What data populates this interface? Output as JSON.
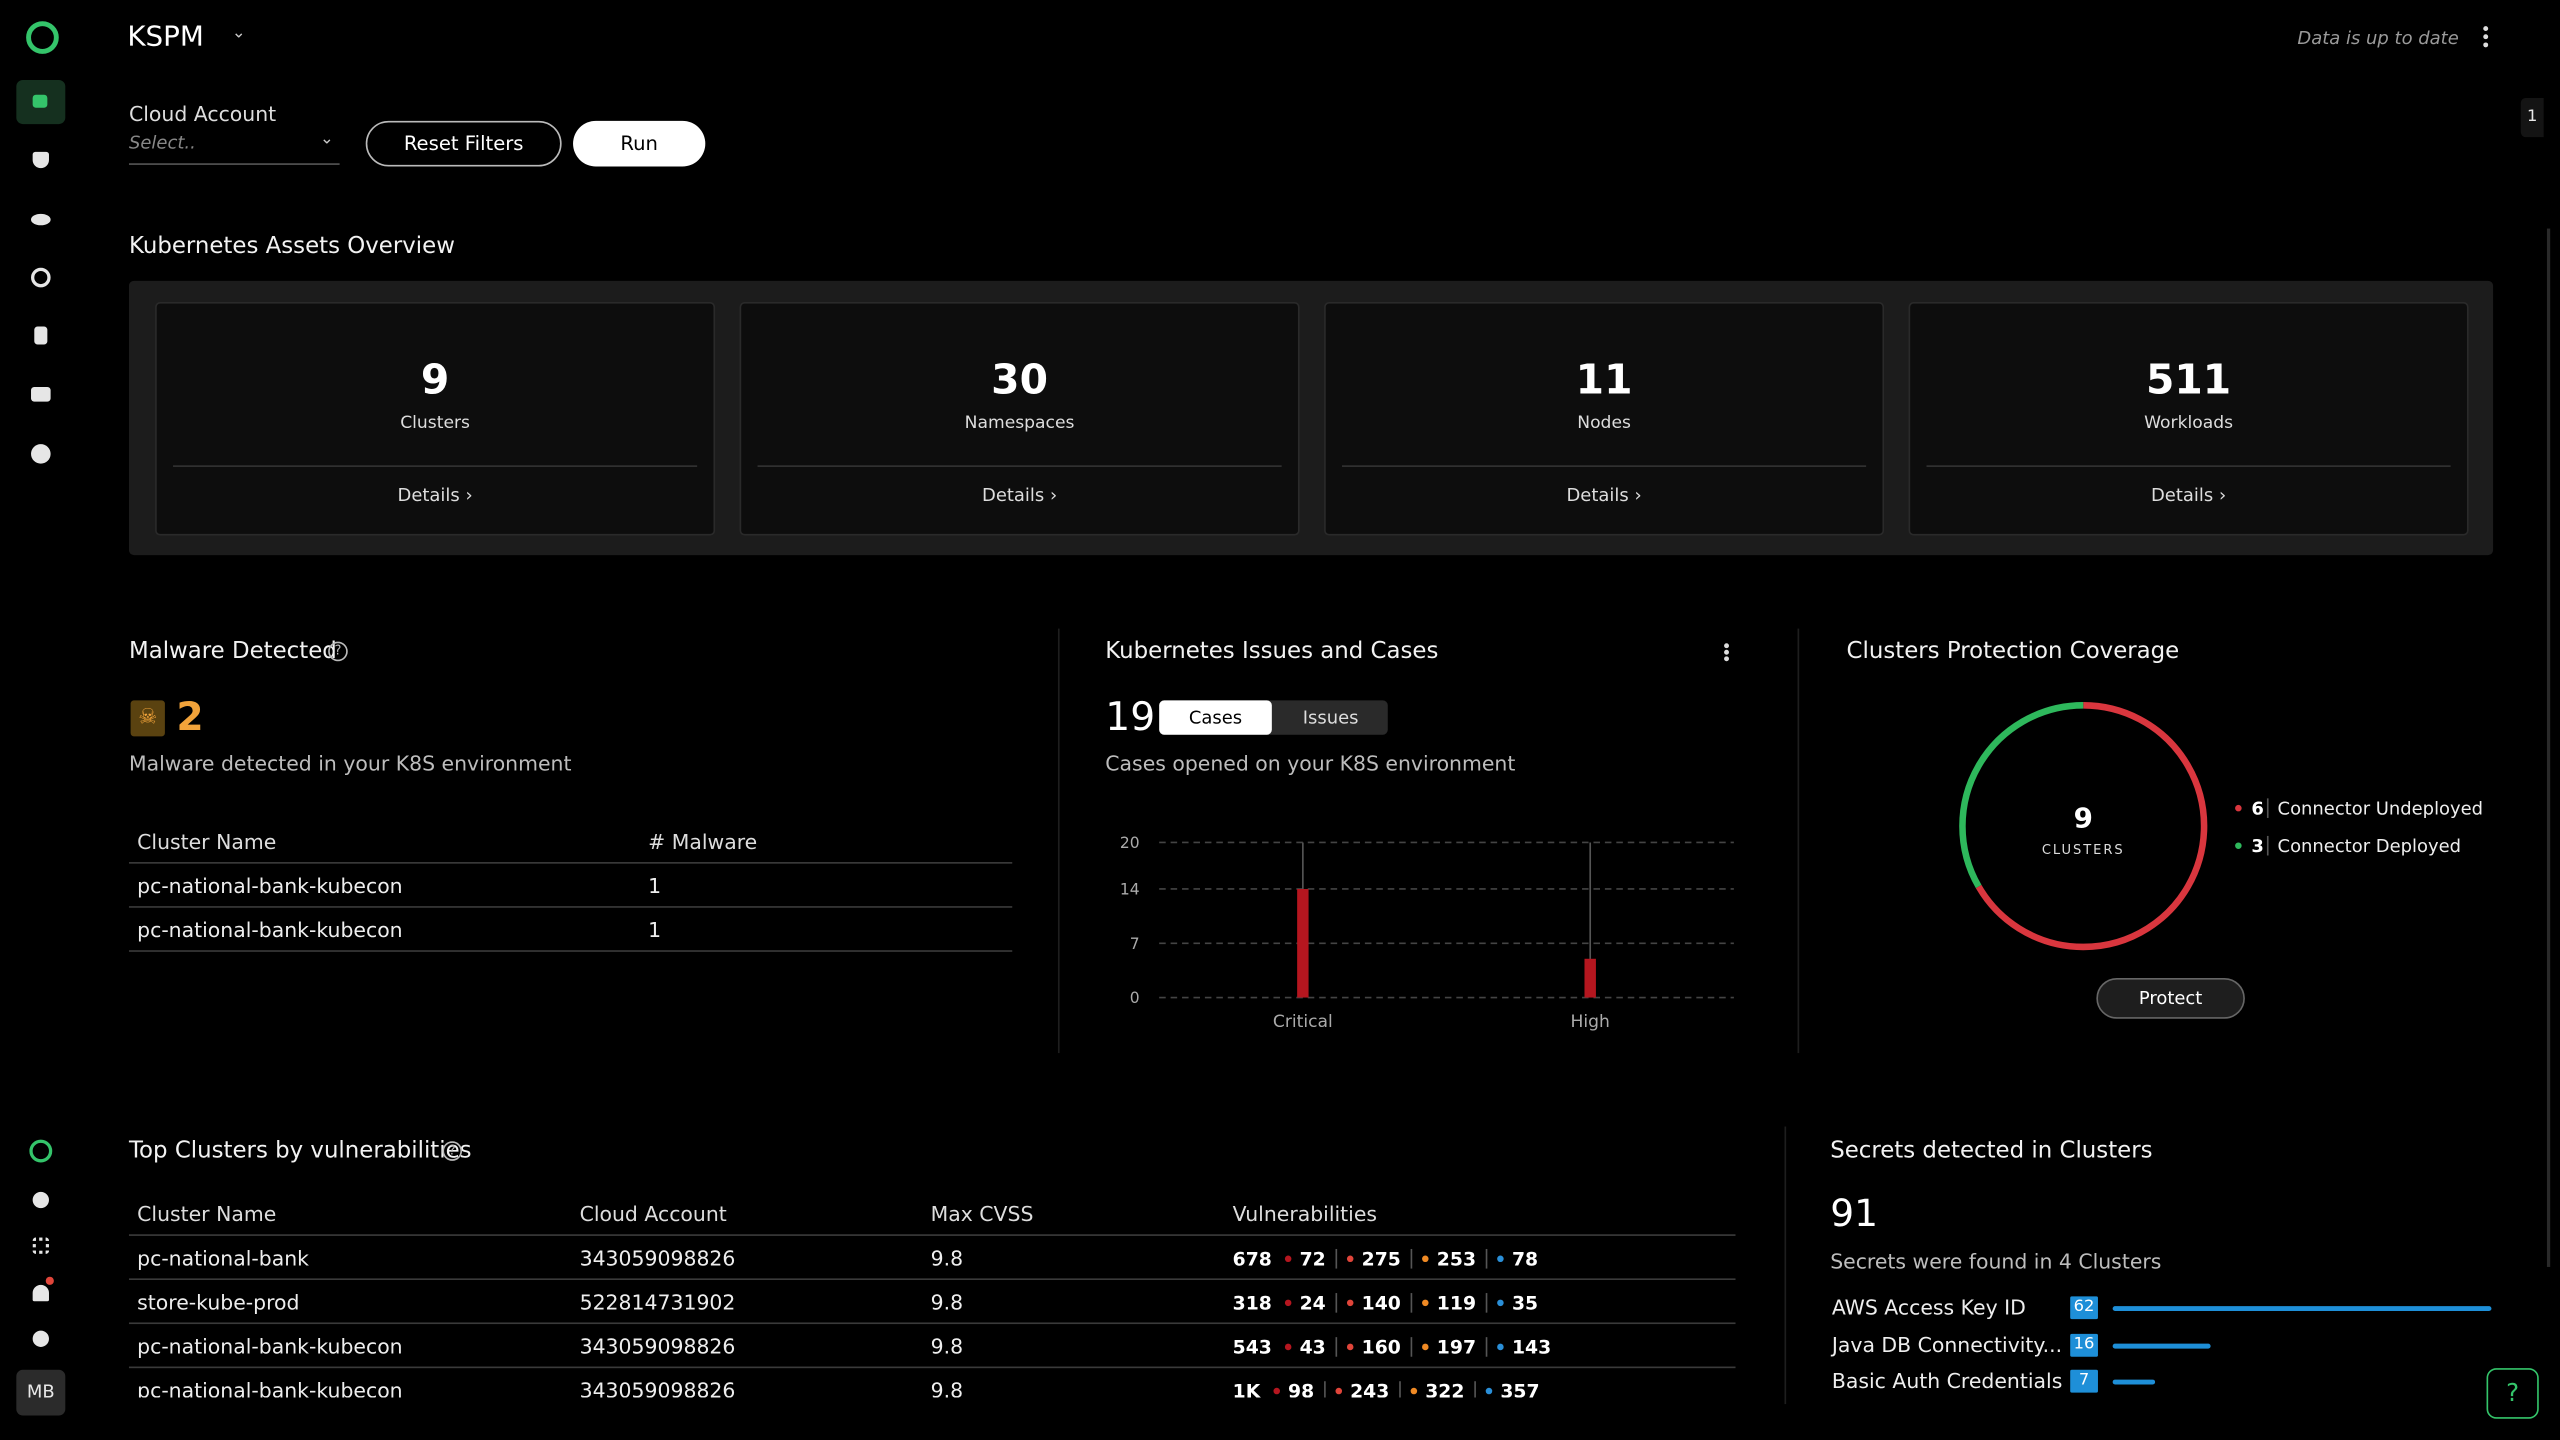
{
  "app": {
    "title": "KSPM",
    "status": "Data is up to date",
    "user_initials": "MB",
    "side_badge": "1"
  },
  "filters": {
    "label": "Cloud Account",
    "placeholder": "Select..",
    "reset": "Reset Filters",
    "run": "Run"
  },
  "overview": {
    "title": "Kubernetes Assets Overview",
    "link": "Details",
    "cards": [
      {
        "value": 9,
        "label": "Clusters"
      },
      {
        "value": 30,
        "label": "Namespaces"
      },
      {
        "value": 11,
        "label": "Nodes"
      },
      {
        "value": 511,
        "label": "Workloads"
      }
    ]
  },
  "malware": {
    "title": "Malware Detected",
    "count": 2,
    "description": "Malware detected in your K8S environment",
    "columns": [
      "Cluster Name",
      "# Malware"
    ],
    "rows": [
      [
        "pc-national-bank-kubecon",
        1
      ],
      [
        "pc-national-bank-kubecon",
        1
      ]
    ]
  },
  "issues": {
    "title": "Kubernetes Issues and Cases",
    "count": 19,
    "tabs": [
      "Cases",
      "Issues"
    ],
    "description": "Cases opened on your K8S environment",
    "chart": {
      "type": "bar",
      "categories": [
        "Critical",
        "High"
      ],
      "values": [
        14,
        5
      ],
      "color": "#b5161f",
      "ylim": [
        0,
        20
      ],
      "yticks": [
        0,
        7,
        14,
        20
      ],
      "grid": true
    }
  },
  "coverage": {
    "title": "Clusters Protection Coverage",
    "total": 9,
    "center_label": "CLUSTERS",
    "series": [
      {
        "name": "Connector Undeployed",
        "value": 6,
        "color": "#d9363e"
      },
      {
        "name": "Connector Deployed",
        "value": 3,
        "color": "#2eb85c"
      }
    ],
    "button": "Protect"
  },
  "vulnerabilities": {
    "title": "Top Clusters by vulnerabilities",
    "columns": [
      "Cluster Name",
      "Cloud Account",
      "Max CVSS",
      "Vulnerabilities"
    ],
    "severity_colors": [
      "#ffffff",
      "#b5161f",
      "#e0453a",
      "#f08a24",
      "#2a8fd8"
    ],
    "rows": [
      [
        "pc-national-bank",
        "343059098826",
        9.8,
        [
          678,
          72,
          275,
          253,
          78
        ]
      ],
      [
        "store-kube-prod",
        "522814731902",
        9.8,
        [
          318,
          24,
          140,
          119,
          35
        ]
      ],
      [
        "pc-national-bank-kubecon",
        "343059098826",
        9.8,
        [
          543,
          43,
          160,
          197,
          143
        ]
      ],
      [
        "pc-national-bank-kubecon",
        "343059098826",
        9.8,
        [
          "1K",
          98,
          243,
          322,
          357
        ]
      ]
    ]
  },
  "secrets": {
    "title": "Secrets detected in Clusters",
    "total": 91,
    "description": "Secrets were found in 4 Clusters",
    "color": "#1e8fd8",
    "items": [
      {
        "name": "AWS Access Key ID",
        "count": 62
      },
      {
        "name": "Java DB Connectivity...",
        "count": 16
      },
      {
        "name": "Basic Auth Credentials",
        "count": 7
      }
    ]
  }
}
